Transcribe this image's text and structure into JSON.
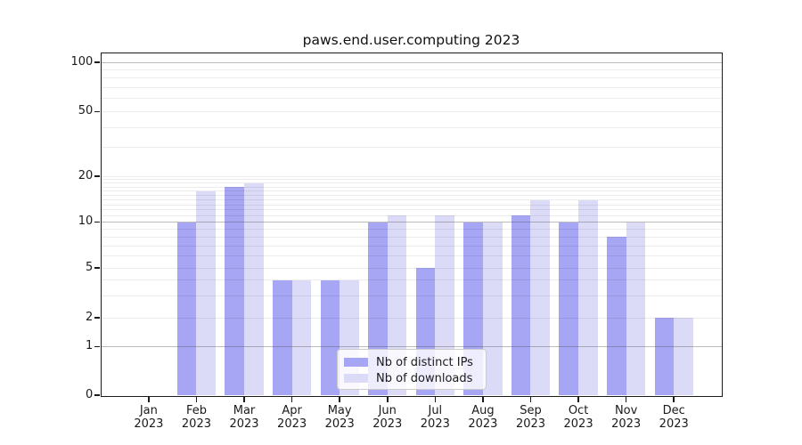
{
  "title": "paws.end.user.computing 2023",
  "chart_data": {
    "type": "bar",
    "title": "paws.end.user.computing 2023",
    "categories": [
      "Jan 2023",
      "Feb 2023",
      "Mar 2023",
      "Apr 2023",
      "May 2023",
      "Jun 2023",
      "Jul 2023",
      "Aug 2023",
      "Sep 2023",
      "Oct 2023",
      "Nov 2023",
      "Dec 2023"
    ],
    "x_tick_line1": [
      "Jan",
      "Feb",
      "Mar",
      "Apr",
      "May",
      "Jun",
      "Jul",
      "Aug",
      "Sep",
      "Oct",
      "Nov",
      "Dec"
    ],
    "x_tick_line2": "2023",
    "series": [
      {
        "name": "Nb of distinct IPs",
        "color": "#a6a6f4",
        "values": [
          0,
          10,
          17,
          4,
          4,
          10,
          5,
          10,
          11,
          10,
          8,
          2
        ]
      },
      {
        "name": "Nb of downloads",
        "color": "#dbdbf8",
        "values": [
          0,
          16,
          18,
          4,
          4,
          11,
          11,
          10,
          14,
          14,
          10,
          2
        ]
      }
    ],
    "y_ticks": [
      0,
      1,
      2,
      5,
      10,
      20,
      50,
      100
    ],
    "y_major_gridlines": [
      1,
      10,
      100
    ],
    "y_minor_gridlines": [
      2,
      3,
      4,
      5,
      6,
      7,
      8,
      9,
      11,
      12,
      13,
      14,
      15,
      16,
      17,
      18,
      19,
      20,
      30,
      40,
      50,
      60,
      70,
      80,
      90
    ],
    "ylim": [
      0,
      115
    ],
    "y_scale": "log-like (0,1,2,5,10,20,50,100)",
    "grid": "horizontal",
    "legend": {
      "position": "lower center inside",
      "entries": [
        "Nb of distinct IPs",
        "Nb of downloads"
      ]
    }
  }
}
